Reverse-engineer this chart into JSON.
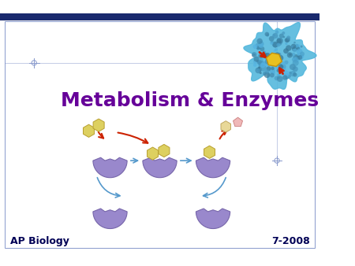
{
  "title": "Metabolism & Enzymes",
  "title_color": "#660099",
  "title_fontsize": 18,
  "title_bold": true,
  "footer_left": "AP Biology",
  "footer_right": "7-2008",
  "footer_color": "#000055",
  "footer_fontsize": 9,
  "background_color": "#ffffff",
  "header_bar_color": "#1a2a6e",
  "border_color": "#8899cc",
  "crosshair_color": "#8899cc",
  "cup_color": "#9988cc",
  "cup_edge": "#7766aa",
  "hex_color": "#ddd060",
  "hex_edge": "#b8a030",
  "hex_color2": "#e8c898",
  "hex_edge2": "#c09060",
  "arrow_red": "#cc2200",
  "arrow_blue": "#5599cc",
  "protein_color": "#44aacc",
  "substrate_gold": "#e8c020"
}
